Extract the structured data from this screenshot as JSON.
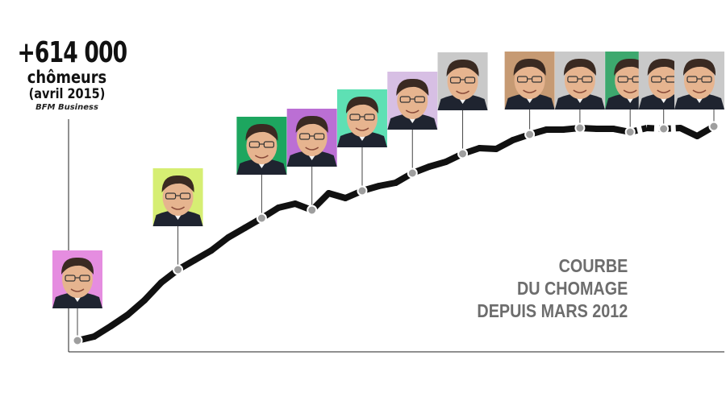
{
  "headline": {
    "value": "+614 000",
    "unit": "chômeurs",
    "date": "(avril 2015)",
    "source": "BFM Business"
  },
  "caption": {
    "line1": "COURBE",
    "line2": "DU CHOMAGE",
    "line3": "DEPUIS MARS 2012"
  },
  "chart_data": {
    "type": "line",
    "title": "COURBE DU CHOMAGE DEPUIS MARS 2012",
    "start": "mars 2012",
    "end": "avril 2015",
    "series": [
      {
        "values": [
          0,
          5,
          18,
          32,
          50,
          72,
          88,
          100,
          112,
          128,
          140,
          152,
          165,
          170,
          162,
          183,
          177,
          186,
          192,
          196,
          208,
          216,
          222,
          232,
          239,
          238,
          249,
          256,
          262,
          262,
          264,
          263,
          263,
          259,
          264,
          263,
          264,
          254,
          266
        ]
      }
    ],
    "markers": [
      {
        "index": 0,
        "photo_bg": "#e58de0"
      },
      {
        "index": 6,
        "photo_bg": "#d6ee73"
      },
      {
        "index": 11,
        "photo_bg": "#1da65f"
      },
      {
        "index": 14,
        "photo_bg": "#bb6fd4"
      },
      {
        "index": 17,
        "photo_bg": "#5ee0b4"
      },
      {
        "index": 20,
        "photo_bg": "#d7bfe4"
      },
      {
        "index": 23,
        "photo_bg": "#c9c9c9"
      },
      {
        "index": 27,
        "photo_bg": "#c69a73"
      },
      {
        "index": 30,
        "photo_bg": "#c9c9c9"
      },
      {
        "index": 33,
        "photo_bg": "#3da86e"
      },
      {
        "index": 35,
        "photo_bg": "#c9c9c9"
      },
      {
        "index": 38,
        "photo_bg": "#c9c9c9"
      }
    ],
    "dashed_from_index": 33,
    "dashed_to_index": 36,
    "colors": {
      "line": "#111111",
      "marker_fill": "#9e9e9e",
      "caption": "#6d6d6d"
    },
    "grid": false,
    "legend": "none"
  }
}
